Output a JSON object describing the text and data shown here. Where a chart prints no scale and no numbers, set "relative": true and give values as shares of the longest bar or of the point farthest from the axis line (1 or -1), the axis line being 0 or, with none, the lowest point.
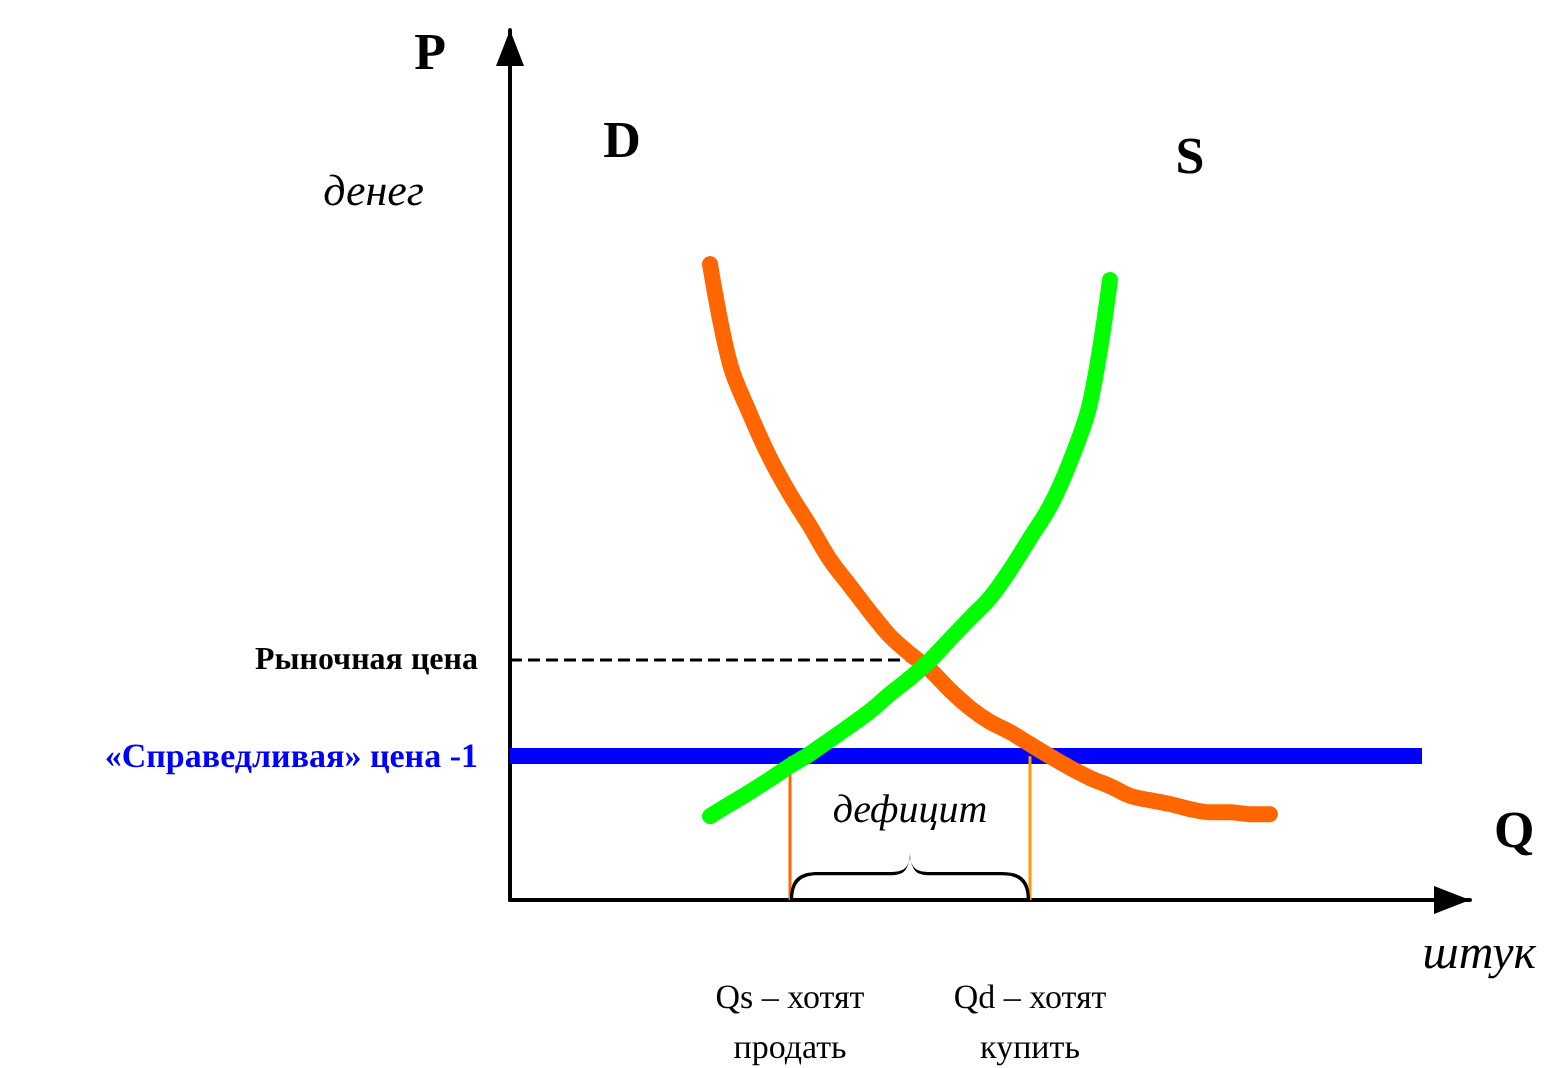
{
  "chart_data": {
    "type": "line",
    "relative": true,
    "xlabel": "Q",
    "ylabel": "P",
    "categories": [
      null,
      null,
      null,
      null,
      null,
      null,
      null,
      null,
      null,
      null,
      null,
      null,
      null,
      null,
      "Qs – хотят продать",
      null,
      null,
      null,
      null,
      null,
      null,
      null,
      null,
      null,
      null,
      null,
      "Qd – хотят купить",
      null,
      null,
      null,
      null,
      null,
      null,
      null,
      null,
      null,
      null,
      null,
      null,
      null,
      null,
      null,
      null,
      null,
      null,
      null,
      null,
      null,
      null
    ],
    "series": [
      {
        "name": "D",
        "color": "#ff6600",
        "values": [
          null,
          null,
          null,
          null,
          null,
          null,
          null,
          null,
          null,
          null,
          1.0,
          0.843,
          0.764,
          0.695,
          0.638,
          0.588,
          0.535,
          0.494,
          0.453,
          0.415,
          0.387,
          0.362,
          0.33,
          0.302,
          0.28,
          0.264,
          0.245,
          0.226,
          0.208,
          0.192,
          0.179,
          0.164,
          0.157,
          0.151,
          0.143,
          0.138,
          0.138,
          0.135,
          0.135,
          null,
          null,
          null,
          null,
          null,
          null,
          null,
          null,
          null,
          null
        ]
      },
      {
        "name": "S",
        "color": "#00ff00",
        "values": [
          null,
          null,
          null,
          null,
          null,
          null,
          null,
          null,
          null,
          null,
          0.132,
          0.151,
          0.17,
          0.19,
          0.211,
          0.23,
          0.252,
          0.274,
          0.297,
          0.324,
          0.349,
          0.377,
          0.41,
          0.443,
          0.475,
          0.519,
          0.569,
          0.619,
          0.689,
          0.781,
          0.975,
          null,
          null,
          null,
          null,
          null,
          null,
          null,
          null,
          null,
          null,
          null,
          null,
          null,
          null,
          null,
          null,
          null,
          null
        ]
      }
    ],
    "ref_lines": [
      {
        "axis": "y",
        "value": 0.377,
        "label": "Рыночная цена",
        "color": "#000000",
        "line_style": "dashed"
      },
      {
        "axis": "y",
        "value": 0.226,
        "label": "«Справедливая» цена -1",
        "color": "#0000ff",
        "line_style": "solid"
      },
      {
        "axis": "x",
        "value": "Qs – хотят продать",
        "color": "#ff6600"
      },
      {
        "axis": "x",
        "value": "Qd – хотят купить",
        "color": "#ff9900"
      }
    ],
    "annotations": [
      "денег",
      "штук",
      "дефицит"
    ],
    "marker": "none",
    "line_style": "solid"
  }
}
